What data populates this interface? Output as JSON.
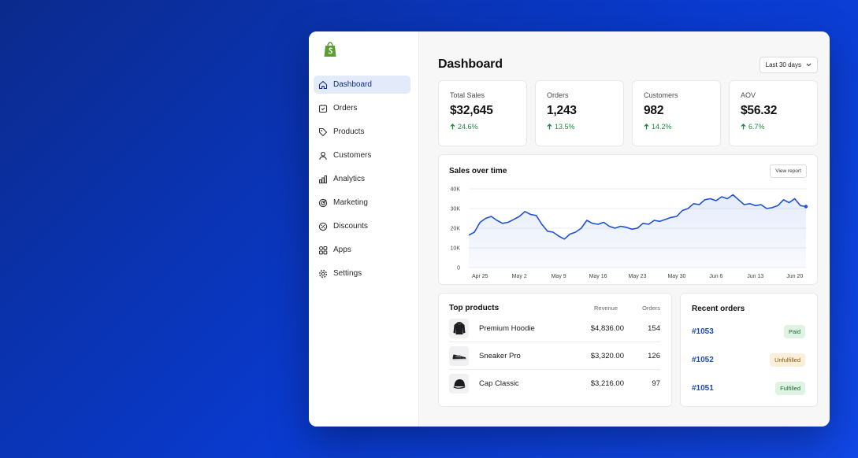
{
  "colors": {
    "accent": "#1a4bc4",
    "positive": "#1b8a3a",
    "brand": "#5a9e2f"
  },
  "sidebar": {
    "logo": "shopify-bag-icon",
    "items": [
      {
        "label": "Dashboard",
        "icon": "home-icon",
        "active": true
      },
      {
        "label": "Orders",
        "icon": "orders-icon"
      },
      {
        "label": "Products",
        "icon": "tag-icon"
      },
      {
        "label": "Customers",
        "icon": "person-icon"
      },
      {
        "label": "Analytics",
        "icon": "analytics-icon"
      },
      {
        "label": "Marketing",
        "icon": "target-icon"
      },
      {
        "label": "Discounts",
        "icon": "discount-icon"
      },
      {
        "label": "Apps",
        "icon": "apps-icon"
      },
      {
        "label": "Settings",
        "icon": "gear-icon"
      }
    ]
  },
  "header": {
    "title": "Dashboard",
    "range": "Last 30 days"
  },
  "kpis": [
    {
      "label": "Total Sales",
      "value": "$32,645",
      "delta": "24.6%"
    },
    {
      "label": "Orders",
      "value": "1,243",
      "delta": "13.5%"
    },
    {
      "label": "Customers",
      "value": "982",
      "delta": "14.2%"
    },
    {
      "label": "AOV",
      "value": "$56.32",
      "delta": "6.7%"
    }
  ],
  "sales_chart": {
    "title": "Sales over time",
    "view_label": "View report"
  },
  "chart_data": {
    "type": "area",
    "title": "Sales over time",
    "x_tick_labels": [
      "Apr 25",
      "May 2",
      "May 9",
      "May 16",
      "May 23",
      "May 30",
      "Jun 6",
      "Jun 13",
      "Jun 20"
    ],
    "y_tick_labels": [
      "0",
      "10K",
      "20K",
      "30K",
      "40K"
    ],
    "ylim": [
      0,
      40000
    ],
    "grid": true,
    "series": [
      {
        "x": [
          "2024-04-23",
          "2024-04-24",
          "2024-04-25",
          "2024-04-26",
          "2024-04-27",
          "2024-04-28",
          "2024-04-29",
          "2024-04-30",
          "2024-05-01",
          "2024-05-02",
          "2024-05-03",
          "2024-05-04",
          "2024-05-05",
          "2024-05-06",
          "2024-05-07",
          "2024-05-08",
          "2024-05-09",
          "2024-05-10",
          "2024-05-11",
          "2024-05-12",
          "2024-05-13",
          "2024-05-14",
          "2024-05-15",
          "2024-05-16",
          "2024-05-17",
          "2024-05-18",
          "2024-05-19",
          "2024-05-20",
          "2024-05-21",
          "2024-05-22",
          "2024-05-23",
          "2024-05-24",
          "2024-05-25",
          "2024-05-26",
          "2024-05-27",
          "2024-05-28",
          "2024-05-29",
          "2024-05-30",
          "2024-05-31",
          "2024-06-01",
          "2024-06-02",
          "2024-06-03",
          "2024-06-04",
          "2024-06-05",
          "2024-06-06",
          "2024-06-07",
          "2024-06-08",
          "2024-06-09",
          "2024-06-10",
          "2024-06-11",
          "2024-06-12",
          "2024-06-13",
          "2024-06-14",
          "2024-06-15",
          "2024-06-16",
          "2024-06-17",
          "2024-06-18",
          "2024-06-19",
          "2024-06-20",
          "2024-06-21",
          "2024-06-22"
        ],
        "values": [
          16500,
          18000,
          23000,
          25000,
          26000,
          24000,
          22500,
          23000,
          24500,
          26000,
          28500,
          27000,
          26500,
          22000,
          18500,
          18000,
          16000,
          14500,
          17000,
          18000,
          20000,
          24000,
          22500,
          22000,
          23000,
          21000,
          20000,
          21000,
          20500,
          19500,
          20000,
          22500,
          22000,
          24000,
          23500,
          24500,
          25500,
          26000,
          29000,
          30000,
          32500,
          32000,
          34500,
          35000,
          34000,
          36000,
          35000,
          37000,
          34500,
          32000,
          32500,
          31500,
          32000,
          30000,
          30500,
          31500,
          34500,
          33000,
          35000,
          31500,
          31000
        ]
      }
    ]
  },
  "top_products": {
    "title": "Top products",
    "col_revenue": "Revenue",
    "col_orders": "Orders",
    "rows": [
      {
        "name": "Premium Hoodie",
        "revenue": "$4,836.00",
        "orders": "154",
        "icon": "hoodie-icon"
      },
      {
        "name": "Sneaker Pro",
        "revenue": "$3,320.00",
        "orders": "126",
        "icon": "sneaker-icon"
      },
      {
        "name": "Cap Classic",
        "revenue": "$3,216.00",
        "orders": "97",
        "icon": "cap-icon"
      }
    ]
  },
  "recent_orders": {
    "title": "Recent orders",
    "rows": [
      {
        "id": "#1053",
        "status": "Paid"
      },
      {
        "id": "#1052",
        "status": "Unfulfilled"
      },
      {
        "id": "#1051",
        "status": "Fulfilled"
      }
    ]
  }
}
